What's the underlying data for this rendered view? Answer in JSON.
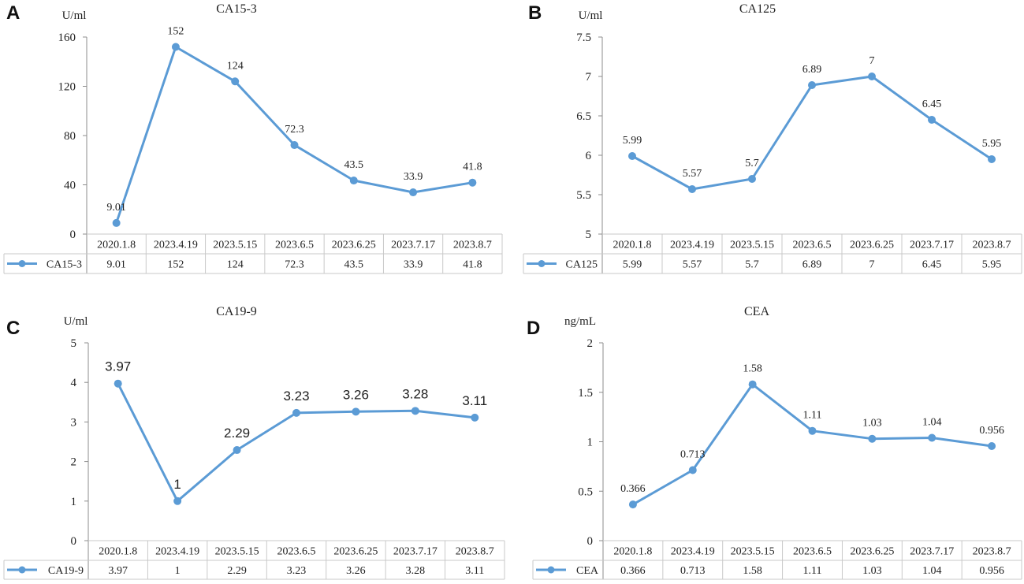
{
  "figure": {
    "line_color": "#5b9bd5",
    "grid_color": "#c9c9c9",
    "axis_color": "#8c8c8c",
    "panels": [
      {
        "letter": "A",
        "title": "CA15-3",
        "unit": "U/ml",
        "legend": "CA15-3"
      },
      {
        "letter": "B",
        "title": "CA125",
        "unit": "U/ml",
        "legend": "CA125"
      },
      {
        "letter": "C",
        "title": "CA19-9",
        "unit": "U/ml",
        "legend": "CA19-9"
      },
      {
        "letter": "D",
        "title": "CEA",
        "unit": "ng/mL",
        "legend": "CEA"
      }
    ]
  },
  "chart_data": [
    {
      "type": "line",
      "title": "CA15-3",
      "ylabel": "U/ml",
      "categories": [
        "2020.1.8",
        "2023.4.19",
        "2023.5.15",
        "2023.6.5",
        "2023.6.25",
        "2023.7.17",
        "2023.8.7"
      ],
      "series": [
        {
          "name": "CA15-3",
          "values": [
            9.01,
            152,
            124,
            72.3,
            43.5,
            33.9,
            41.8
          ]
        }
      ],
      "labels": [
        "9.01",
        "152",
        "124",
        "72.3",
        "43.5",
        "33.9",
        "41.8"
      ],
      "ylim": [
        0,
        160
      ],
      "yticks": [
        0,
        40,
        80,
        120,
        160
      ],
      "ytick_labels": [
        "0",
        "40",
        "80",
        "120",
        "160"
      ],
      "data_table": true
    },
    {
      "type": "line",
      "title": "CA125",
      "ylabel": "U/ml",
      "categories": [
        "2020.1.8",
        "2023.4.19",
        "2023.5.15",
        "2023.6.5",
        "2023.6.25",
        "2023.7.17",
        "2023.8.7"
      ],
      "series": [
        {
          "name": "CA125",
          "values": [
            5.99,
            5.57,
            5.7,
            6.89,
            7,
            6.45,
            5.95
          ]
        }
      ],
      "labels": [
        "5.99",
        "5.57",
        "5.7",
        "6.89",
        "7",
        "6.45",
        "5.95"
      ],
      "ylim": [
        5,
        7.5
      ],
      "yticks": [
        5,
        5.5,
        6,
        6.5,
        7,
        7.5
      ],
      "ytick_labels": [
        "5",
        "5.5",
        "6",
        "6.5",
        "7",
        "7.5"
      ],
      "data_table": true
    },
    {
      "type": "line",
      "title": "CA19-9",
      "ylabel": "U/ml",
      "categories": [
        "2020.1.8",
        "2023.4.19",
        "2023.5.15",
        "2023.6.5",
        "2023.6.25",
        "2023.7.17",
        "2023.8.7"
      ],
      "series": [
        {
          "name": "CA19-9",
          "values": [
            3.97,
            1,
            2.29,
            3.23,
            3.26,
            3.28,
            3.11
          ]
        }
      ],
      "labels": [
        "3.97",
        "1",
        "2.29",
        "3.23",
        "3.26",
        "3.28",
        "3.11"
      ],
      "ylim": [
        0,
        5
      ],
      "yticks": [
        0,
        1,
        2,
        3,
        4,
        5
      ],
      "ytick_labels": [
        "0",
        "1",
        "2",
        "3",
        "4",
        "5"
      ],
      "data_table": true
    },
    {
      "type": "line",
      "title": "CEA",
      "ylabel": "ng/mL",
      "categories": [
        "2020.1.8",
        "2023.4.19",
        "2023.5.15",
        "2023.6.5",
        "2023.6.25",
        "2023.7.17",
        "2023.8.7"
      ],
      "series": [
        {
          "name": "CEA",
          "values": [
            0.366,
            0.713,
            1.58,
            1.11,
            1.03,
            1.04,
            0.956
          ]
        }
      ],
      "labels": [
        "0.366",
        "0.713",
        "1.58",
        "1.11",
        "1.03",
        "1.04",
        "0.956"
      ],
      "ylim": [
        0,
        2
      ],
      "yticks": [
        0,
        0.5,
        1,
        1.5,
        2
      ],
      "ytick_labels": [
        "0",
        "0.5",
        "1",
        "1.5",
        "2"
      ],
      "data_table": true
    }
  ]
}
